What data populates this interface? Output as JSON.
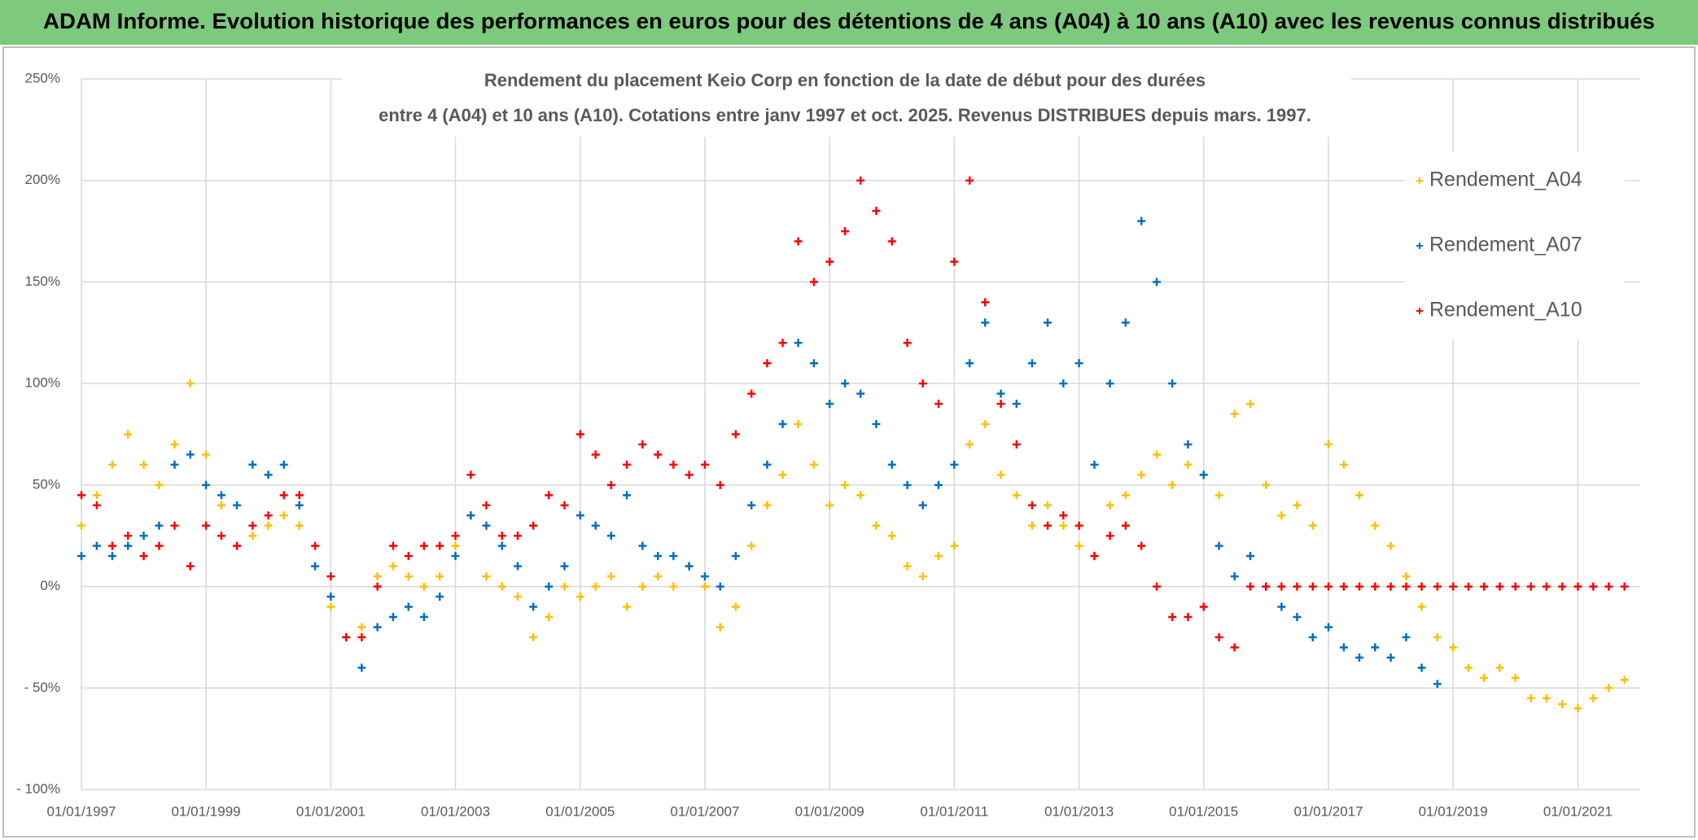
{
  "header": "ADAM Informe. Evolution historique des performances en euros pour des détentions de 4 ans (A04) à 10 ans (A10) avec les revenus connus distribués",
  "chart_data": {
    "type": "scatter",
    "title": [
      "Rendement du placement Keio Corp en fonction de la date de début pour des durées",
      "entre 4 (A04) et 10 ans (A10). Cotations entre janv 1997 et oct. 2025. Revenus DISTRIBUES depuis mars. 1997."
    ],
    "xlim": [
      "1997-01-01",
      "2022-01-01"
    ],
    "xticks": [
      {
        "value": "1997-01-01",
        "label": "01/01/1997"
      },
      {
        "value": "1999-01-01",
        "label": "01/01/1999"
      },
      {
        "value": "2001-01-01",
        "label": "01/01/2001"
      },
      {
        "value": "2003-01-01",
        "label": "01/01/2003"
      },
      {
        "value": "2005-01-01",
        "label": "01/01/2005"
      },
      {
        "value": "2007-01-01",
        "label": "01/01/2007"
      },
      {
        "value": "2009-01-01",
        "label": "01/01/2009"
      },
      {
        "value": "2011-01-01",
        "label": "01/01/2011"
      },
      {
        "value": "2013-01-01",
        "label": "01/01/2013"
      },
      {
        "value": "2015-01-01",
        "label": "01/01/2015"
      },
      {
        "value": "2017-01-01",
        "label": "01/01/2017"
      },
      {
        "value": "2019-01-01",
        "label": "01/01/2019"
      },
      {
        "value": "2021-01-01",
        "label": "01/01/2021"
      }
    ],
    "ylim": [
      -100,
      250
    ],
    "yticks": [
      {
        "value": 250,
        "label": "250%"
      },
      {
        "value": 200,
        "label": "200%"
      },
      {
        "value": 150,
        "label": "150%"
      },
      {
        "value": 100,
        "label": "100%"
      },
      {
        "value": 50,
        "label": "50%"
      },
      {
        "value": 0,
        "label": "0%"
      },
      {
        "value": -50,
        "label": "- 50%"
      },
      {
        "value": -100,
        "label": "- 100%"
      }
    ],
    "grid": true,
    "legend": "right",
    "series": [
      {
        "name": "Rendement_A04",
        "color": "#ffc000",
        "x": [
          "1997-01-01",
          "1997-04-01",
          "1997-07-01",
          "1997-10-01",
          "1998-01-01",
          "1998-04-01",
          "1998-07-01",
          "1998-10-01",
          "1999-01-01",
          "1999-04-01",
          "1999-07-01",
          "1999-10-01",
          "2000-01-01",
          "2000-04-01",
          "2000-07-01",
          "2000-10-01",
          "2001-01-01",
          "2001-04-01",
          "2001-07-01",
          "2001-10-01",
          "2002-01-01",
          "2002-04-01",
          "2002-07-01",
          "2002-10-01",
          "2003-01-01",
          "2003-04-01",
          "2003-07-01",
          "2003-10-01",
          "2004-01-01",
          "2004-04-01",
          "2004-07-01",
          "2004-10-01",
          "2005-01-01",
          "2005-04-01",
          "2005-07-01",
          "2005-10-01",
          "2006-01-01",
          "2006-04-01",
          "2006-07-01",
          "2006-10-01",
          "2007-01-01",
          "2007-04-01",
          "2007-07-01",
          "2007-10-01",
          "2008-01-01",
          "2008-04-01",
          "2008-07-01",
          "2008-10-01",
          "2009-01-01",
          "2009-04-01",
          "2009-07-01",
          "2009-10-01",
          "2010-01-01",
          "2010-04-01",
          "2010-07-01",
          "2010-10-01",
          "2011-01-01",
          "2011-04-01",
          "2011-07-01",
          "2011-10-01",
          "2012-01-01",
          "2012-04-01",
          "2012-07-01",
          "2012-10-01",
          "2013-01-01",
          "2013-04-01",
          "2013-07-01",
          "2013-10-01",
          "2014-01-01",
          "2014-04-01",
          "2014-07-01",
          "2014-10-01",
          "2015-01-01",
          "2015-04-01",
          "2015-07-01",
          "2015-10-01",
          "2016-01-01",
          "2016-04-01",
          "2016-07-01",
          "2016-10-01",
          "2017-01-01",
          "2017-04-01",
          "2017-07-01",
          "2017-10-01",
          "2018-01-01",
          "2018-04-01",
          "2018-07-01",
          "2018-10-01",
          "2019-01-01",
          "2019-04-01",
          "2019-07-01",
          "2019-10-01",
          "2020-01-01",
          "2020-04-01",
          "2020-07-01",
          "2020-10-01",
          "2021-01-01",
          "2021-04-01",
          "2021-07-01",
          "2021-10-01"
        ],
        "values": [
          30,
          45,
          60,
          75,
          60,
          50,
          70,
          100,
          65,
          40,
          20,
          25,
          30,
          35,
          30,
          10,
          -10,
          -25,
          -20,
          5,
          10,
          5,
          0,
          5,
          20,
          35,
          5,
          0,
          -5,
          -25,
          -15,
          0,
          -5,
          0,
          5,
          -10,
          0,
          5,
          0,
          10,
          0,
          -20,
          -10,
          20,
          40,
          55,
          80,
          60,
          40,
          50,
          45,
          30,
          25,
          10,
          5,
          15,
          20,
          70,
          80,
          55,
          45,
          30,
          40,
          30,
          20,
          15,
          40,
          45,
          55,
          65,
          50,
          60,
          55,
          45,
          85,
          90,
          50,
          35,
          40,
          30,
          70,
          60,
          45,
          30,
          20,
          5,
          -10,
          -25,
          -30,
          -40,
          -45,
          -40,
          -45,
          -55,
          -55,
          -58,
          -60,
          -55,
          -50,
          -46
        ]
      },
      {
        "name": "Rendement_A07",
        "color": "#0070c0",
        "x": [
          "1997-01-01",
          "1997-04-01",
          "1997-07-01",
          "1997-10-01",
          "1998-01-01",
          "1998-04-01",
          "1998-07-01",
          "1998-10-01",
          "1999-01-01",
          "1999-04-01",
          "1999-07-01",
          "1999-10-01",
          "2000-01-01",
          "2000-04-01",
          "2000-07-01",
          "2000-10-01",
          "2001-01-01",
          "2001-04-01",
          "2001-07-01",
          "2001-10-01",
          "2002-01-01",
          "2002-04-01",
          "2002-07-01",
          "2002-10-01",
          "2003-01-01",
          "2003-04-01",
          "2003-07-01",
          "2003-10-01",
          "2004-01-01",
          "2004-04-01",
          "2004-07-01",
          "2004-10-01",
          "2005-01-01",
          "2005-04-01",
          "2005-07-01",
          "2005-10-01",
          "2006-01-01",
          "2006-04-01",
          "2006-07-01",
          "2006-10-01",
          "2007-01-01",
          "2007-04-01",
          "2007-07-01",
          "2007-10-01",
          "2008-01-01",
          "2008-04-01",
          "2008-07-01",
          "2008-10-01",
          "2009-01-01",
          "2009-04-01",
          "2009-07-01",
          "2009-10-01",
          "2010-01-01",
          "2010-04-01",
          "2010-07-01",
          "2010-10-01",
          "2011-01-01",
          "2011-04-01",
          "2011-07-01",
          "2011-10-01",
          "2012-01-01",
          "2012-04-01",
          "2012-07-01",
          "2012-10-01",
          "2013-01-01",
          "2013-04-01",
          "2013-07-01",
          "2013-10-01",
          "2014-01-01",
          "2014-04-01",
          "2014-07-01",
          "2014-10-01",
          "2015-01-01",
          "2015-04-01",
          "2015-07-01",
          "2015-10-01",
          "2016-01-01",
          "2016-04-01",
          "2016-07-01",
          "2016-10-01",
          "2017-01-01",
          "2017-04-01",
          "2017-07-01",
          "2017-10-01",
          "2018-01-01",
          "2018-04-01",
          "2018-07-01",
          "2018-10-01"
        ],
        "values": [
          15,
          20,
          15,
          20,
          25,
          30,
          60,
          65,
          50,
          45,
          40,
          60,
          55,
          60,
          40,
          10,
          -5,
          -25,
          -40,
          -20,
          -15,
          -10,
          -15,
          -5,
          15,
          35,
          30,
          20,
          10,
          -10,
          0,
          10,
          35,
          30,
          25,
          45,
          20,
          15,
          15,
          10,
          5,
          0,
          15,
          40,
          60,
          80,
          120,
          110,
          90,
          100,
          95,
          80,
          60,
          50,
          40,
          50,
          60,
          110,
          130,
          95,
          90,
          110,
          130,
          100,
          110,
          60,
          100,
          130,
          180,
          150,
          100,
          70,
          55,
          20,
          5,
          15,
          0,
          -10,
          -15,
          -25,
          -20,
          -30,
          -35,
          -30,
          -35,
          -25,
          -40,
          -48
        ]
      },
      {
        "name": "Rendement_A10",
        "color": "#ff0000",
        "x": [
          "1997-01-01",
          "1997-04-01",
          "1997-07-01",
          "1997-10-01",
          "1998-01-01",
          "1998-04-01",
          "1998-07-01",
          "1998-10-01",
          "1999-01-01",
          "1999-04-01",
          "1999-07-01",
          "1999-10-01",
          "2000-01-01",
          "2000-04-01",
          "2000-07-01",
          "2000-10-01",
          "2001-01-01",
          "2001-04-01",
          "2001-07-01",
          "2001-10-01",
          "2002-01-01",
          "2002-04-01",
          "2002-07-01",
          "2002-10-01",
          "2003-01-01",
          "2003-04-01",
          "2003-07-01",
          "2003-10-01",
          "2004-01-01",
          "2004-04-01",
          "2004-07-01",
          "2004-10-01",
          "2005-01-01",
          "2005-04-01",
          "2005-07-01",
          "2005-10-01",
          "2006-01-01",
          "2006-04-01",
          "2006-07-01",
          "2006-10-01",
          "2007-01-01",
          "2007-04-01",
          "2007-07-01",
          "2007-10-01",
          "2008-01-01",
          "2008-04-01",
          "2008-07-01",
          "2008-10-01",
          "2009-01-01",
          "2009-04-01",
          "2009-07-01",
          "2009-10-01",
          "2010-01-01",
          "2010-04-01",
          "2010-07-01",
          "2010-10-01",
          "2011-01-01",
          "2011-04-01",
          "2011-07-01",
          "2011-10-01",
          "2012-01-01",
          "2012-04-01",
          "2012-07-01",
          "2012-10-01",
          "2013-01-01",
          "2013-04-01",
          "2013-07-01",
          "2013-10-01",
          "2014-01-01",
          "2014-04-01",
          "2014-07-01",
          "2014-10-01",
          "2015-01-01",
          "2015-04-01",
          "2015-07-01",
          "2015-10-01",
          "2016-01-01",
          "2016-04-01",
          "2016-07-01",
          "2016-10-01",
          "2017-01-01",
          "2017-04-01",
          "2017-07-01",
          "2017-10-01",
          "2018-01-01",
          "2018-04-01",
          "2018-07-01",
          "2018-10-01",
          "2019-01-01",
          "2019-04-01",
          "2019-07-01",
          "2019-10-01",
          "2020-01-01",
          "2020-04-01",
          "2020-07-01",
          "2020-10-01",
          "2021-01-01",
          "2021-04-01",
          "2021-07-01",
          "2021-10-01"
        ],
        "values": [
          45,
          40,
          20,
          25,
          15,
          20,
          30,
          10,
          30,
          25,
          20,
          30,
          35,
          45,
          45,
          20,
          5,
          -25,
          -25,
          0,
          20,
          15,
          20,
          20,
          25,
          55,
          40,
          25,
          25,
          30,
          45,
          40,
          75,
          65,
          50,
          60,
          70,
          65,
          60,
          55,
          60,
          50,
          75,
          95,
          110,
          120,
          170,
          150,
          160,
          175,
          200,
          185,
          170,
          120,
          100,
          90,
          160,
          200,
          140,
          90,
          70,
          40,
          30,
          35,
          30,
          15,
          25,
          30,
          20,
          0,
          -15,
          -15,
          -10,
          -25,
          -30,
          0,
          0,
          0,
          0,
          0,
          0,
          0,
          0,
          0,
          0,
          0,
          0,
          0,
          0,
          0,
          0,
          0,
          0,
          0,
          0,
          0,
          0,
          0,
          0,
          0
        ]
      }
    ]
  }
}
